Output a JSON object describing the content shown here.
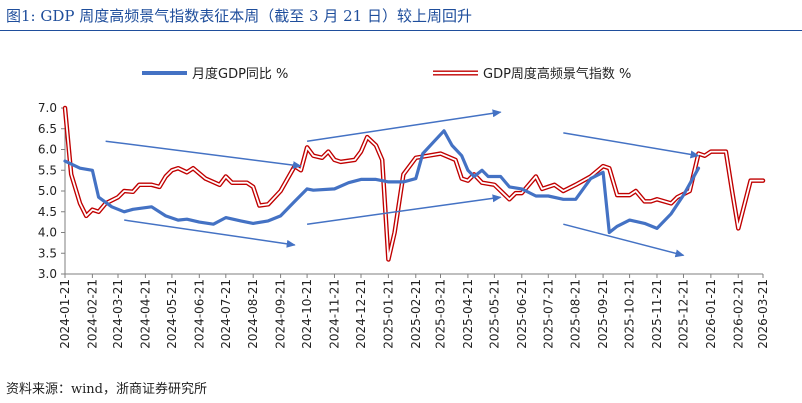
{
  "figure": {
    "title": "图1:  GDP 周度高频景气指数表征本周（截至 3 月 21 日）较上周回升",
    "source": "资料来源：wind，浙商证券研究所"
  },
  "chart_data": {
    "type": "line",
    "x_ticks": [
      "2024-01-21",
      "2024-02-21",
      "2024-03-21",
      "2024-04-21",
      "2024-05-21",
      "2024-06-21",
      "2024-07-21",
      "2024-08-21",
      "2024-09-21",
      "2024-10-21",
      "2024-11-21",
      "2024-12-21",
      "2025-01-21",
      "2025-02-21",
      "2025-03-21",
      "2025-04-21",
      "2025-05-21",
      "2025-06-21",
      "2025-07-21",
      "2025-08-21",
      "2025-09-21",
      "2025-10-21",
      "2025-11-21",
      "2025-12-21",
      "2026-01-21",
      "2026-02-21",
      "2026-03-21"
    ],
    "y_ticks": [
      "3.0",
      "3.5",
      "4.0",
      "4.5",
      "5.0",
      "5.5",
      "6.0",
      "6.5",
      "7.0"
    ],
    "ylim": [
      3.0,
      7.0
    ],
    "grid": false,
    "legend_position": "top",
    "series": [
      {
        "name": "月度GDP同比 %",
        "color": "#4472c4",
        "points": [
          [
            "2024-01-21",
            5.72
          ],
          [
            "2024-02-07",
            5.55
          ],
          [
            "2024-02-21",
            5.5
          ],
          [
            "2024-02-28",
            4.85
          ],
          [
            "2024-03-14",
            4.62
          ],
          [
            "2024-03-28",
            4.5
          ],
          [
            "2024-04-07",
            4.56
          ],
          [
            "2024-04-28",
            4.62
          ],
          [
            "2024-05-14",
            4.4
          ],
          [
            "2024-05-28",
            4.3
          ],
          [
            "2024-06-07",
            4.32
          ],
          [
            "2024-06-21",
            4.25
          ],
          [
            "2024-07-07",
            4.2
          ],
          [
            "2024-07-21",
            4.36
          ],
          [
            "2024-08-07",
            4.28
          ],
          [
            "2024-08-21",
            4.22
          ],
          [
            "2024-09-07",
            4.28
          ],
          [
            "2024-09-21",
            4.4
          ],
          [
            "2024-10-07",
            4.75
          ],
          [
            "2024-10-21",
            5.05
          ],
          [
            "2024-10-28",
            5.02
          ],
          [
            "2024-11-21",
            5.05
          ],
          [
            "2024-12-07",
            5.2
          ],
          [
            "2024-12-21",
            5.28
          ],
          [
            "2025-01-07",
            5.28
          ],
          [
            "2025-01-21",
            5.22
          ],
          [
            "2025-02-07",
            5.22
          ],
          [
            "2025-02-21",
            5.3
          ],
          [
            "2025-03-01",
            5.9
          ],
          [
            "2025-03-14",
            6.2
          ],
          [
            "2025-03-25",
            6.45
          ],
          [
            "2025-04-03",
            6.1
          ],
          [
            "2025-04-14",
            5.85
          ],
          [
            "2025-04-21",
            5.5
          ],
          [
            "2025-04-28",
            5.35
          ],
          [
            "2025-05-07",
            5.5
          ],
          [
            "2025-05-14",
            5.35
          ],
          [
            "2025-05-28",
            5.35
          ],
          [
            "2025-06-07",
            5.1
          ],
          [
            "2025-06-21",
            5.05
          ],
          [
            "2025-07-07",
            4.88
          ],
          [
            "2025-07-21",
            4.88
          ],
          [
            "2025-08-07",
            4.8
          ],
          [
            "2025-08-21",
            4.8
          ],
          [
            "2025-09-07",
            5.3
          ],
          [
            "2025-09-21",
            5.45
          ],
          [
            "2025-09-28",
            4.0
          ],
          [
            "2025-10-07",
            4.15
          ],
          [
            "2025-10-21",
            4.3
          ],
          [
            "2025-11-07",
            4.22
          ],
          [
            "2025-11-21",
            4.1
          ],
          [
            "2025-12-07",
            4.45
          ],
          [
            "2025-12-21",
            4.9
          ],
          [
            "2026-01-07",
            5.55
          ]
        ]
      },
      {
        "name": "GDP周度高频景气指数 %",
        "color": "#c00000",
        "points": [
          [
            "2024-01-21",
            7.0
          ],
          [
            "2024-01-28",
            5.4
          ],
          [
            "2024-02-07",
            4.7
          ],
          [
            "2024-02-14",
            4.4
          ],
          [
            "2024-02-21",
            4.55
          ],
          [
            "2024-02-28",
            4.5
          ],
          [
            "2024-03-07",
            4.7
          ],
          [
            "2024-03-21",
            4.85
          ],
          [
            "2024-03-28",
            5.0
          ],
          [
            "2024-04-07",
            4.98
          ],
          [
            "2024-04-14",
            5.15
          ],
          [
            "2024-04-28",
            5.15
          ],
          [
            "2024-05-07",
            5.1
          ],
          [
            "2024-05-14",
            5.35
          ],
          [
            "2024-05-21",
            5.5
          ],
          [
            "2024-05-28",
            5.55
          ],
          [
            "2024-06-07",
            5.45
          ],
          [
            "2024-06-14",
            5.55
          ],
          [
            "2024-06-28",
            5.3
          ],
          [
            "2024-07-14",
            5.15
          ],
          [
            "2024-07-21",
            5.35
          ],
          [
            "2024-07-28",
            5.2
          ],
          [
            "2024-08-14",
            5.2
          ],
          [
            "2024-08-21",
            5.1
          ],
          [
            "2024-08-28",
            4.65
          ],
          [
            "2024-09-07",
            4.68
          ],
          [
            "2024-09-21",
            5.0
          ],
          [
            "2024-10-07",
            5.6
          ],
          [
            "2024-10-14",
            5.5
          ],
          [
            "2024-10-21",
            6.05
          ],
          [
            "2024-10-28",
            5.85
          ],
          [
            "2024-11-07",
            5.8
          ],
          [
            "2024-11-14",
            5.95
          ],
          [
            "2024-11-21",
            5.75
          ],
          [
            "2024-11-28",
            5.7
          ],
          [
            "2024-12-14",
            5.75
          ],
          [
            "2024-12-21",
            5.95
          ],
          [
            "2024-12-28",
            6.3
          ],
          [
            "2025-01-07",
            6.1
          ],
          [
            "2025-01-14",
            5.75
          ],
          [
            "2025-01-21",
            3.35
          ],
          [
            "2025-01-28",
            4.0
          ],
          [
            "2025-02-07",
            5.4
          ],
          [
            "2025-02-21",
            5.8
          ],
          [
            "2025-03-07",
            5.85
          ],
          [
            "2025-03-21",
            5.9
          ],
          [
            "2025-04-07",
            5.75
          ],
          [
            "2025-04-14",
            5.3
          ],
          [
            "2025-04-21",
            5.25
          ],
          [
            "2025-04-28",
            5.4
          ],
          [
            "2025-05-07",
            5.2
          ],
          [
            "2025-05-21",
            5.15
          ],
          [
            "2025-06-07",
            4.8
          ],
          [
            "2025-06-14",
            4.95
          ],
          [
            "2025-06-21",
            4.95
          ],
          [
            "2025-07-07",
            5.35
          ],
          [
            "2025-07-14",
            5.05
          ],
          [
            "2025-07-28",
            5.15
          ],
          [
            "2025-08-07",
            5.0
          ],
          [
            "2025-08-21",
            5.15
          ],
          [
            "2025-09-07",
            5.35
          ],
          [
            "2025-09-21",
            5.6
          ],
          [
            "2025-09-28",
            5.55
          ],
          [
            "2025-10-07",
            4.9
          ],
          [
            "2025-10-21",
            4.9
          ],
          [
            "2025-10-28",
            5.0
          ],
          [
            "2025-11-07",
            4.75
          ],
          [
            "2025-11-14",
            4.75
          ],
          [
            "2025-11-21",
            4.8
          ],
          [
            "2025-12-07",
            4.7
          ],
          [
            "2025-12-14",
            4.85
          ],
          [
            "2025-12-28",
            5.0
          ],
          [
            "2026-01-07",
            5.9
          ],
          [
            "2026-01-14",
            5.85
          ],
          [
            "2026-01-21",
            5.95
          ],
          [
            "2026-02-07",
            5.95
          ],
          [
            "2026-02-14",
            5.0
          ],
          [
            "2026-02-21",
            4.1
          ],
          [
            "2026-03-07",
            5.25
          ],
          [
            "2026-03-21",
            5.25
          ]
        ]
      }
    ],
    "annotations": {
      "arrow_color": "#4472c4",
      "trend_arrows": [
        {
          "from": [
            "2024-03-07",
            6.2
          ],
          "to": [
            "2024-10-14",
            5.6
          ]
        },
        {
          "from": [
            "2024-03-28",
            4.3
          ],
          "to": [
            "2024-10-07",
            3.7
          ]
        },
        {
          "from": [
            "2024-10-21",
            6.2
          ],
          "to": [
            "2025-05-28",
            6.9
          ]
        },
        {
          "from": [
            "2024-10-21",
            4.2
          ],
          "to": [
            "2025-05-28",
            4.85
          ]
        },
        {
          "from": [
            "2025-08-07",
            6.4
          ],
          "to": [
            "2026-01-07",
            5.85
          ]
        },
        {
          "from": [
            "2025-08-07",
            4.2
          ],
          "to": [
            "2025-12-21",
            3.45
          ]
        }
      ]
    }
  }
}
